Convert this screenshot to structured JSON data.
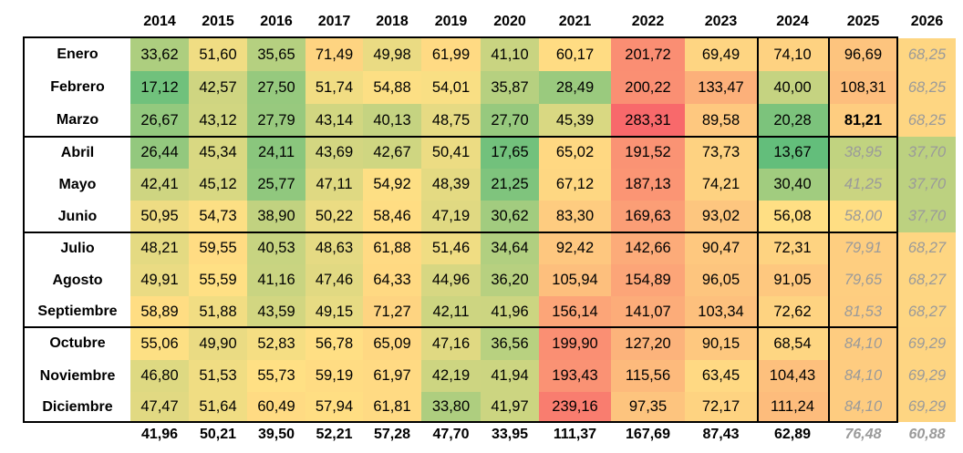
{
  "years": [
    "2014",
    "2015",
    "2016",
    "2017",
    "2018",
    "2019",
    "2020",
    "2021",
    "2022",
    "2023",
    "2024",
    "2025",
    "2026"
  ],
  "forecast_style": "gray-italic",
  "rows": [
    {
      "month": "Enero",
      "values": [
        "33,62",
        "51,60",
        "35,65",
        "71,49",
        "49,98",
        "61,99",
        "41,10",
        "60,17",
        "201,72",
        "69,49",
        "74,10",
        "96,69",
        "68,25"
      ],
      "forecast_from": 12
    },
    {
      "month": "Febrero",
      "values": [
        "17,12",
        "42,57",
        "27,50",
        "51,74",
        "54,88",
        "54,01",
        "35,87",
        "28,49",
        "200,22",
        "133,47",
        "40,00",
        "108,31",
        "68,25"
      ],
      "forecast_from": 12
    },
    {
      "month": "Marzo",
      "values": [
        "26,67",
        "43,12",
        "27,79",
        "43,14",
        "40,13",
        "48,75",
        "27,70",
        "45,39",
        "283,31",
        "89,58",
        "20,28",
        "81,21",
        "68,25"
      ],
      "forecast_from": 12,
      "bold_index": 11
    },
    {
      "month": "Abril",
      "values": [
        "26,44",
        "45,34",
        "24,11",
        "43,69",
        "42,67",
        "50,41",
        "17,65",
        "65,02",
        "191,52",
        "73,73",
        "13,67",
        "38,95",
        "37,70"
      ],
      "forecast_from": 11
    },
    {
      "month": "Mayo",
      "values": [
        "42,41",
        "45,12",
        "25,77",
        "47,11",
        "54,92",
        "48,39",
        "21,25",
        "67,12",
        "187,13",
        "74,21",
        "30,40",
        "41,25",
        "37,70"
      ],
      "forecast_from": 11
    },
    {
      "month": "Junio",
      "values": [
        "50,95",
        "54,73",
        "38,90",
        "50,22",
        "58,46",
        "47,19",
        "30,62",
        "83,30",
        "169,63",
        "93,02",
        "56,08",
        "58,00",
        "37,70"
      ],
      "forecast_from": 11
    },
    {
      "month": "Julio",
      "values": [
        "48,21",
        "59,55",
        "40,53",
        "48,63",
        "61,88",
        "51,46",
        "34,64",
        "92,42",
        "142,66",
        "90,47",
        "72,31",
        "79,91",
        "68,27"
      ],
      "forecast_from": 11
    },
    {
      "month": "Agosto",
      "values": [
        "49,91",
        "55,59",
        "41,16",
        "47,46",
        "64,33",
        "44,96",
        "36,20",
        "105,94",
        "154,89",
        "96,05",
        "91,05",
        "79,65",
        "68,27"
      ],
      "forecast_from": 11
    },
    {
      "month": "Septiembre",
      "values": [
        "58,89",
        "51,88",
        "43,59",
        "49,15",
        "71,27",
        "42,11",
        "41,96",
        "156,14",
        "141,07",
        "103,34",
        "72,62",
        "81,53",
        "68,27"
      ],
      "forecast_from": 11
    },
    {
      "month": "Octubre",
      "values": [
        "55,06",
        "49,90",
        "52,83",
        "56,78",
        "65,09",
        "47,16",
        "36,56",
        "199,90",
        "127,20",
        "90,15",
        "68,54",
        "84,10",
        "69,29"
      ],
      "forecast_from": 11
    },
    {
      "month": "Noviembre",
      "values": [
        "46,80",
        "51,53",
        "55,73",
        "59,19",
        "61,97",
        "42,19",
        "41,94",
        "193,43",
        "115,56",
        "63,45",
        "104,43",
        "84,10",
        "69,29"
      ],
      "forecast_from": 11
    },
    {
      "month": "Diciembre",
      "values": [
        "47,47",
        "51,64",
        "60,49",
        "57,94",
        "61,81",
        "33,80",
        "41,97",
        "239,16",
        "97,35",
        "72,17",
        "111,24",
        "84,10",
        "69,29"
      ],
      "forecast_from": 11
    }
  ],
  "totals": [
    "41,96",
    "50,21",
    "39,50",
    "52,21",
    "57,28",
    "47,70",
    "33,95",
    "111,37",
    "167,69",
    "87,43",
    "62,89",
    "76,48",
    "60,88"
  ],
  "totals_forecast_from": 11,
  "colors": {
    "low": "#63be7b",
    "mid": "#ffe084",
    "high": "#f8696b",
    "forecast_text": "#9a9a9a",
    "border": "#000000"
  }
}
